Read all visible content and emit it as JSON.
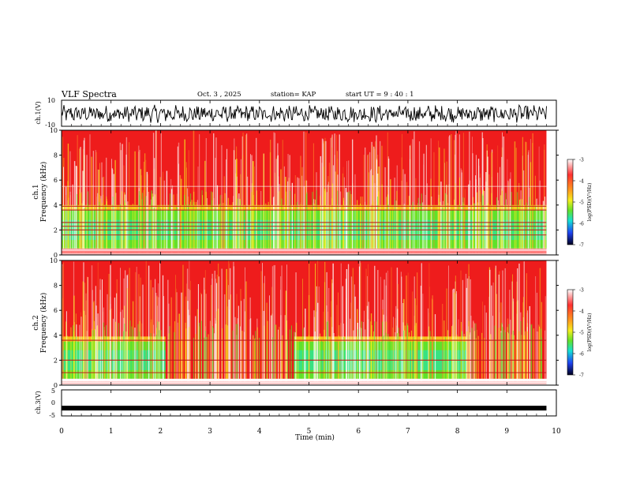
{
  "header": {
    "title": "VLF Spectra",
    "date": "Oct. 3 , 2025",
    "station": "station= KAP",
    "start_ut": "start UT = 9 : 40 : 1"
  },
  "chart_data": [
    {
      "panel": "ch1-waveform",
      "type": "line",
      "ylabel": "ch.1(V)",
      "ylim": [
        -10,
        10
      ],
      "yticks": [
        "10",
        "-10"
      ],
      "x_range_min": [
        0,
        9.8
      ],
      "description_values": "noise waveform oscillating roughly between -7 and 6 V"
    },
    {
      "panel": "ch1-spectrogram",
      "type": "heatmap",
      "label_channel": "ch.1",
      "ylabel": "Frequency (kHz)",
      "ylim": [
        0,
        10
      ],
      "yticks": [
        "0",
        "2",
        "4",
        "6",
        "8",
        "10"
      ],
      "x_range_min": [
        0,
        9.8
      ],
      "quiet_band_khz": [
        0.5,
        3.6
      ],
      "colorbar": {
        "label": "log(PSD)(V²/Hz)",
        "range": [
          -7,
          -3
        ],
        "ticks": [
          "-3",
          "-4",
          "-5",
          "-6",
          "-7"
        ]
      }
    },
    {
      "panel": "ch2-spectrogram",
      "type": "heatmap",
      "label_channel": "ch.2",
      "ylabel": "Frequency (kHz)",
      "ylim": [
        0,
        10
      ],
      "yticks": [
        "0",
        "2",
        "4",
        "6",
        "8",
        "10"
      ],
      "x_range_min": [
        0,
        9.8
      ],
      "quiet_band_khz": [
        0.5,
        3.5
      ],
      "quiet_intervals_min": [
        [
          0,
          2.1
        ],
        [
          4.7,
          8.2
        ]
      ],
      "colorbar": {
        "label": "log(PSD)(V²/Hz)",
        "range": [
          -7,
          -3
        ],
        "ticks": [
          "-3",
          "-4",
          "-5",
          "-6",
          "-7"
        ]
      }
    },
    {
      "panel": "ch3-voltage",
      "type": "line",
      "ylabel": "ch.3(V)",
      "ylim": [
        -5,
        5
      ],
      "yticks": [
        "5",
        "0",
        "-5"
      ],
      "x": [
        0,
        9.8
      ],
      "y": [
        -2,
        -2
      ]
    }
  ],
  "x_axis": {
    "label": "Time (min)",
    "range": [
      0,
      10
    ],
    "ticks": [
      "0",
      "1",
      "2",
      "3",
      "4",
      "5",
      "6",
      "7",
      "8",
      "9",
      "10"
    ]
  },
  "colors": {
    "hot": "#ee1c1c",
    "warm": "#f7ea1e",
    "mid": "#5fe12a",
    "cool": "#15e3c8",
    "low": "#1a3cf0",
    "min": "#000000"
  }
}
